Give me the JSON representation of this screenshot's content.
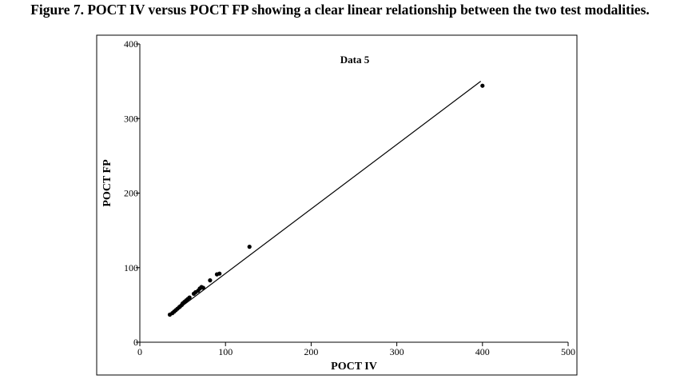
{
  "figure_caption": "Figure 7. POCT IV versus POCT FP showing a clear linear relationship between the two test modalities.",
  "chart_data": {
    "type": "scatter",
    "title": "Data 5",
    "xlabel": "POCT IV",
    "ylabel": "POCT FP",
    "xlim": [
      0,
      500
    ],
    "ylim": [
      0,
      400
    ],
    "xticks": [
      0,
      100,
      200,
      300,
      400,
      500
    ],
    "yticks": [
      0,
      100,
      200,
      300,
      400
    ],
    "grid": false,
    "series": [
      {
        "marker": "dot",
        "color": "#000000",
        "x": [
          35,
          38,
          40,
          42,
          44,
          46,
          47,
          49,
          50,
          52,
          54,
          56,
          58,
          63,
          65,
          68,
          70,
          72,
          74,
          82,
          90,
          93,
          128,
          400
        ],
        "y": [
          37,
          39,
          41,
          43,
          45,
          47,
          48,
          50,
          52,
          54,
          56,
          58,
          60,
          65,
          67,
          69,
          72,
          74,
          73,
          83,
          91,
          92,
          128,
          344
        ]
      }
    ],
    "fit_line": {
      "x": [
        35,
        398
      ],
      "y": [
        36,
        350
      ],
      "color": "#000000"
    }
  }
}
